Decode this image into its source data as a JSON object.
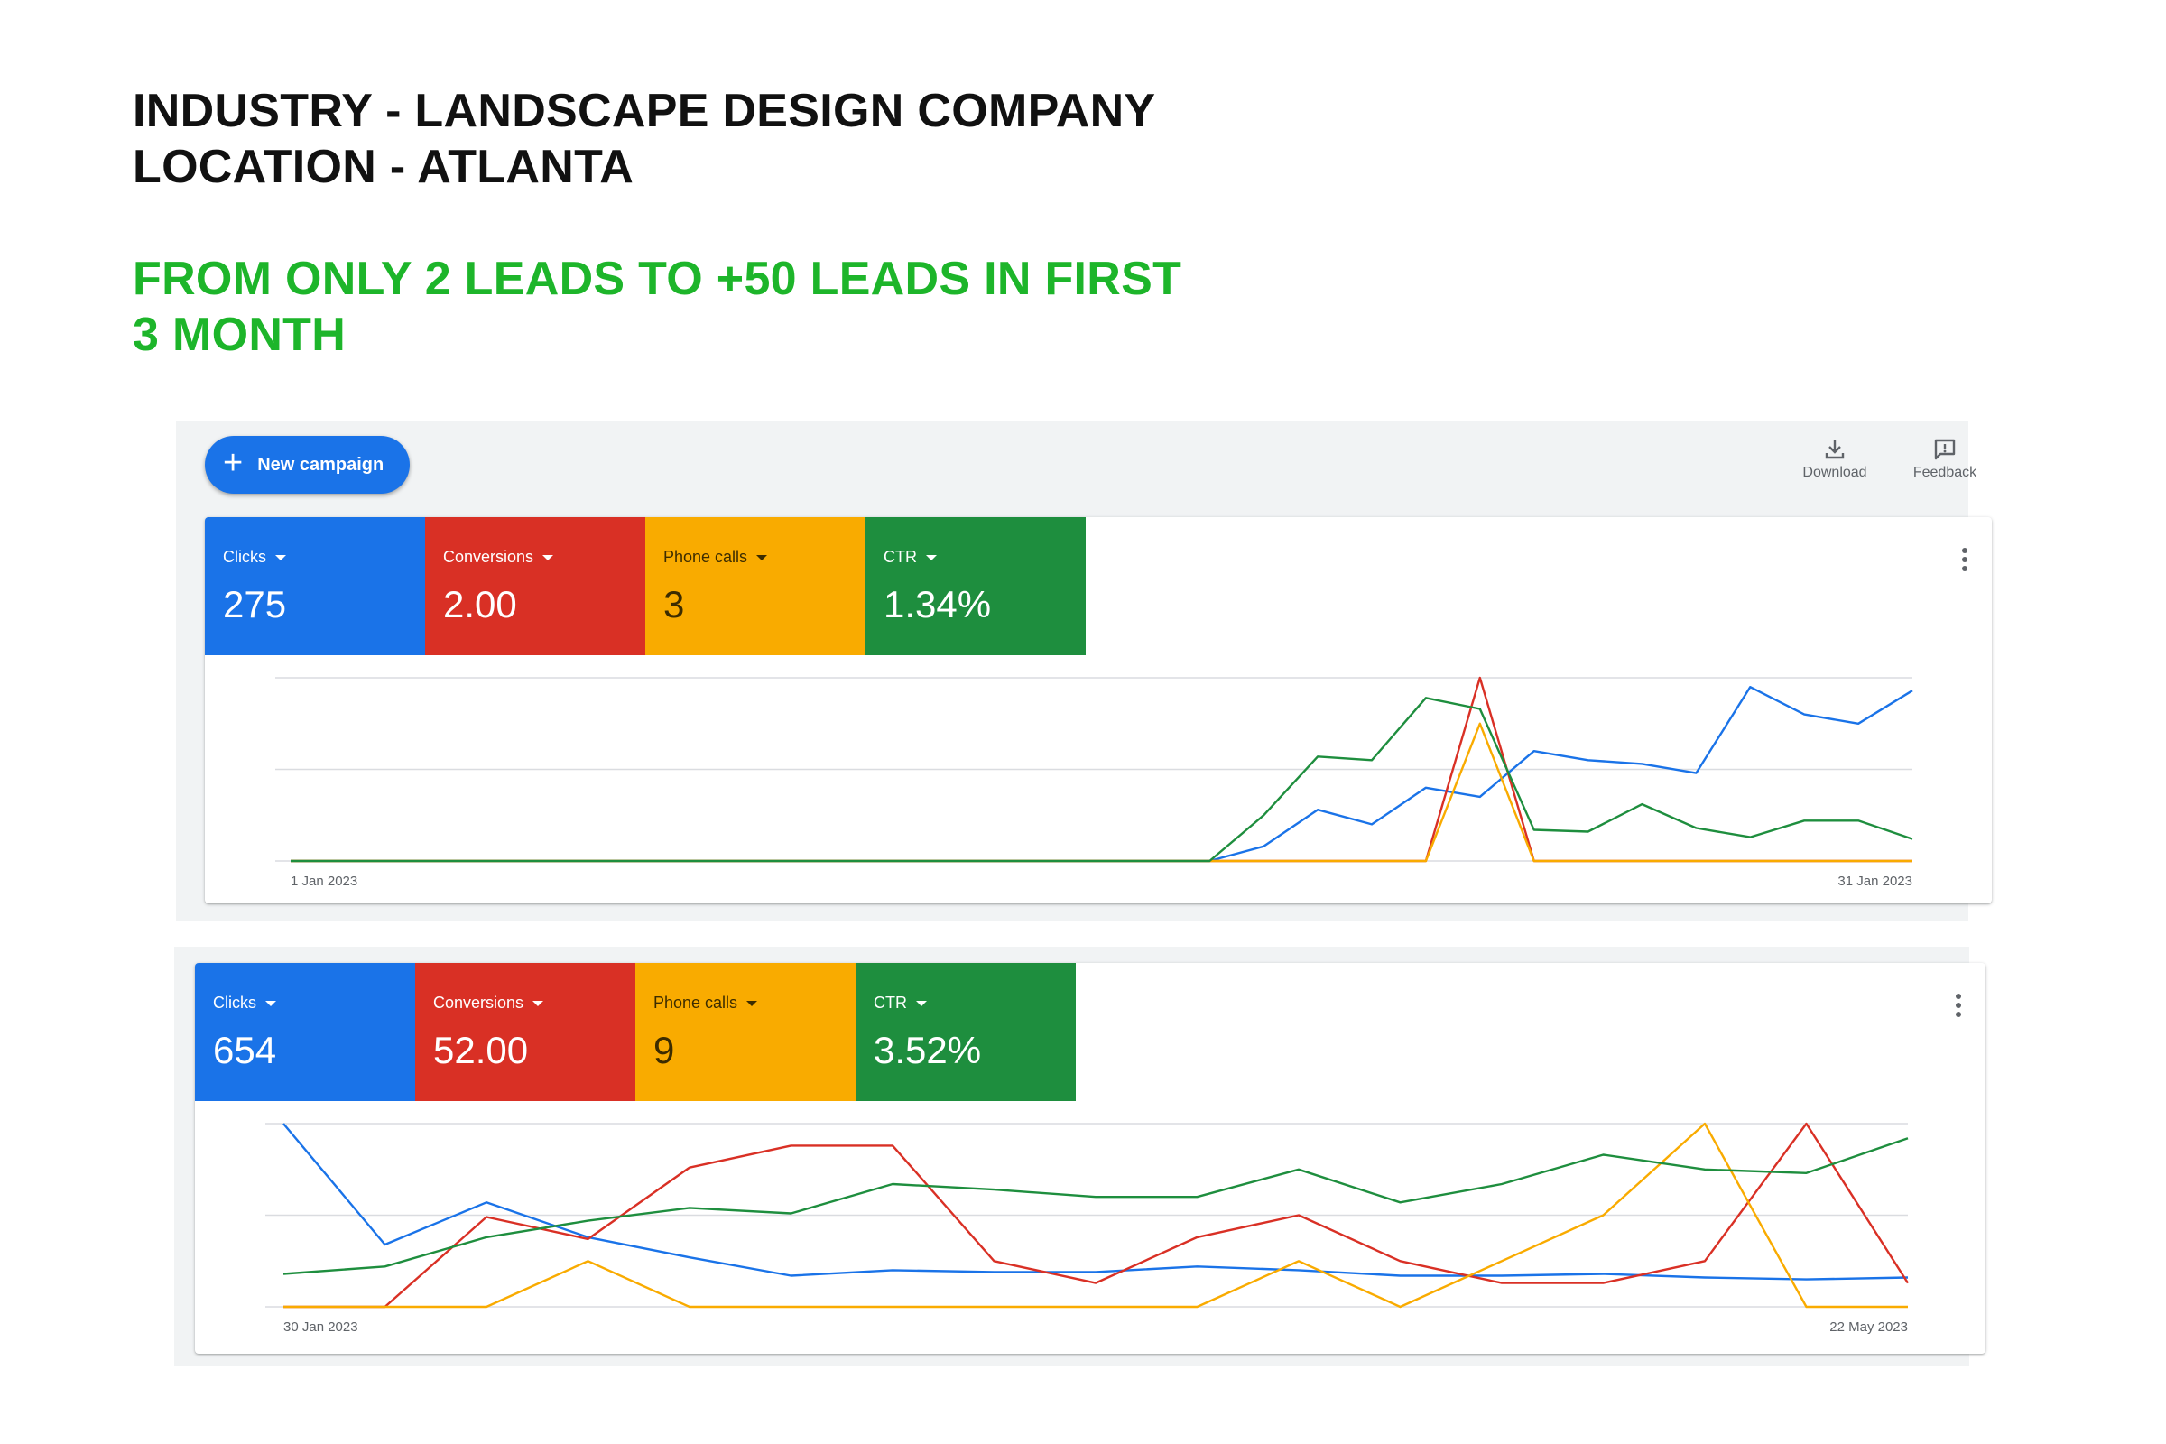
{
  "headline": {
    "industry": "INDUSTRY - LANDSCAPE DESIGN COMPANY",
    "location": "LOCATION - ATLANTA",
    "result_line1": "FROM ONLY 2 LEADS TO +50 LEADS IN FIRST",
    "result_line2": "3 MONTH"
  },
  "toolbar": {
    "new_campaign_label": "New campaign",
    "download_label": "Download",
    "feedback_label": "Feedback"
  },
  "colors": {
    "clicks": "#1a73e8",
    "conversions": "#d93025",
    "phone_calls": "#f9ab00",
    "ctr": "#1e8e3e",
    "headline_green": "#1db52a"
  },
  "period1": {
    "tiles": [
      {
        "label": "Clicks",
        "value": "275"
      },
      {
        "label": "Conversions",
        "value": "2.00"
      },
      {
        "label": "Phone calls",
        "value": "3"
      },
      {
        "label": "CTR",
        "value": "1.34%"
      }
    ]
  },
  "period2": {
    "tiles": [
      {
        "label": "Clicks",
        "value": "654"
      },
      {
        "label": "Conversions",
        "value": "52.00"
      },
      {
        "label": "Phone calls",
        "value": "9"
      },
      {
        "label": "CTR",
        "value": "3.52%"
      }
    ]
  },
  "chart_data": [
    {
      "type": "line",
      "x_start_label": "1 Jan 2023",
      "x_end_label": "31 Jan 2023",
      "grid": true,
      "ylim": [
        0,
        1
      ],
      "series": [
        {
          "name": "Clicks",
          "color": "#1a73e8",
          "values": [
            0,
            0,
            0,
            0,
            0,
            0,
            0,
            0,
            0,
            0,
            0,
            0,
            0,
            0,
            0,
            0,
            0,
            0,
            0.08,
            0.28,
            0.2,
            0.4,
            0.35,
            0.6,
            0.55,
            0.53,
            0.48,
            0.95,
            0.8,
            0.75,
            0.93
          ]
        },
        {
          "name": "Conversions",
          "color": "#d93025",
          "values": [
            0,
            0,
            0,
            0,
            0,
            0,
            0,
            0,
            0,
            0,
            0,
            0,
            0,
            0,
            0,
            0,
            0,
            0,
            0,
            0,
            0,
            0,
            1.0,
            0,
            0,
            0,
            0,
            0,
            0,
            0,
            0
          ]
        },
        {
          "name": "Phone calls",
          "color": "#f9ab00",
          "values": [
            0,
            0,
            0,
            0,
            0,
            0,
            0,
            0,
            0,
            0,
            0,
            0,
            0,
            0,
            0,
            0,
            0,
            0,
            0,
            0,
            0,
            0,
            0.75,
            0,
            0,
            0,
            0,
            0,
            0,
            0,
            0
          ]
        },
        {
          "name": "CTR",
          "color": "#1e8e3e",
          "values": [
            0,
            0,
            0,
            0,
            0,
            0,
            0,
            0,
            0,
            0,
            0,
            0,
            0,
            0,
            0,
            0,
            0,
            0,
            0.25,
            0.57,
            0.55,
            0.89,
            0.83,
            0.17,
            0.16,
            0.31,
            0.18,
            0.13,
            0.22,
            0.22,
            0.12
          ]
        }
      ]
    },
    {
      "type": "line",
      "x_start_label": "30 Jan 2023",
      "x_end_label": "22 May 2023",
      "grid": true,
      "ylim": [
        0,
        1
      ],
      "series": [
        {
          "name": "Clicks",
          "color": "#1a73e8",
          "values": [
            1.0,
            0.34,
            0.57,
            0.38,
            0.27,
            0.17,
            0.2,
            0.19,
            0.19,
            0.22,
            0.2,
            0.17,
            0.17,
            0.18,
            0.16,
            0.15,
            0.16
          ]
        },
        {
          "name": "Conversions",
          "color": "#d93025",
          "values": [
            0,
            0,
            0.49,
            0.37,
            0.76,
            0.88,
            0.88,
            0.25,
            0.13,
            0.38,
            0.5,
            0.25,
            0.13,
            0.13,
            0.25,
            1.0,
            0.13
          ]
        },
        {
          "name": "Phone calls",
          "color": "#f9ab00",
          "values": [
            0,
            0,
            0,
            0.25,
            0,
            0,
            0,
            0,
            0,
            0,
            0.25,
            0,
            0.25,
            0.5,
            1.0,
            0,
            0
          ]
        },
        {
          "name": "CTR",
          "color": "#1e8e3e",
          "values": [
            0.18,
            0.22,
            0.38,
            0.47,
            0.54,
            0.51,
            0.67,
            0.64,
            0.6,
            0.6,
            0.75,
            0.57,
            0.67,
            0.83,
            0.75,
            0.73,
            0.92
          ]
        }
      ]
    }
  ]
}
